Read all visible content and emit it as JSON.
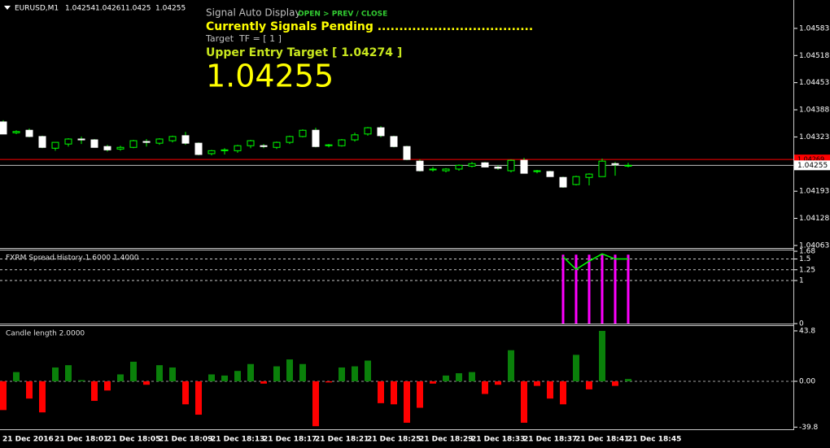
{
  "chart_data": [
    {
      "type": "candlestick",
      "title": "EURUSD,M1",
      "header_ohlc": [
        1.04254,
        1.04261,
        1.0425,
        1.04255
      ],
      "signal_label": "Signal Auto Display",
      "signal_mode": "OPEN > PREV / CLOSE",
      "status": "Currently Signals Pending ....................................",
      "target_tf": "Target  TF = [ 1 ]",
      "entry_target": "Upper Entry Target [ 1.04274 ]",
      "big_price": 1.04255,
      "categories": [
        "21 Dec 2016",
        null,
        null,
        null,
        "21 Dec 18:01",
        null,
        null,
        null,
        "21 Dec 18:05",
        null,
        null,
        null,
        "21 Dec 18:09",
        null,
        null,
        null,
        "21 Dec 18:13",
        null,
        null,
        null,
        "21 Dec 18:17",
        null,
        null,
        null,
        "21 Dec 18:21",
        null,
        null,
        null,
        "21 Dec 18:25",
        null,
        null,
        null,
        "21 Dec 18:29",
        null,
        null,
        null,
        "21 Dec 18:33",
        null,
        null,
        null,
        "21 Dec 18:37",
        null,
        null,
        null,
        "21 Dec 18:41",
        null,
        null,
        null,
        "21 Dec 18:45"
      ],
      "open": [
        1.04359,
        1.04333,
        1.04339,
        1.04324,
        1.04296,
        1.04306,
        1.04318,
        1.04316,
        1.043,
        1.04294,
        1.04298,
        1.04312,
        1.04308,
        1.04314,
        1.04326,
        1.04308,
        1.04283,
        1.0429,
        1.0429,
        1.04302,
        1.04302,
        1.04298,
        1.0431,
        1.04324,
        1.04339,
        1.04302,
        1.04302,
        1.04316,
        1.0433,
        1.04345,
        1.04324,
        1.043,
        1.04265,
        1.04244,
        1.04242,
        1.04246,
        1.04253,
        1.04261,
        1.04251,
        1.04242,
        1.04267,
        1.0424,
        1.0424,
        1.04226,
        1.04209,
        1.04226,
        1.04228,
        1.04259,
        1.04254
      ],
      "high": [
        1.04363,
        1.04339,
        1.04343,
        1.04326,
        1.0431,
        1.0432,
        1.04324,
        1.04318,
        1.04304,
        1.04302,
        1.04316,
        1.04318,
        1.0432,
        1.04326,
        1.04335,
        1.0431,
        1.04292,
        1.04296,
        1.04304,
        1.04316,
        1.04306,
        1.04312,
        1.04326,
        1.04341,
        1.04345,
        1.04306,
        1.04318,
        1.04333,
        1.04347,
        1.04349,
        1.04326,
        1.04302,
        1.04269,
        1.04251,
        1.04248,
        1.04257,
        1.04263,
        1.04263,
        1.04255,
        1.04269,
        1.04273,
        1.04244,
        1.04242,
        1.04228,
        1.0423,
        1.04236,
        1.04271,
        1.04263,
        1.04261
      ],
      "low": [
        1.0433,
        1.0433,
        1.04322,
        1.04296,
        1.0429,
        1.043,
        1.04306,
        1.04298,
        1.04288,
        1.0429,
        1.04296,
        1.043,
        1.04304,
        1.0431,
        1.04304,
        1.04279,
        1.04279,
        1.04281,
        1.04285,
        1.04296,
        1.04296,
        1.04294,
        1.04306,
        1.04322,
        1.04298,
        1.04298,
        1.043,
        1.04312,
        1.04326,
        1.04322,
        1.04298,
        1.04267,
        1.0424,
        1.0424,
        1.04238,
        1.04242,
        1.0425,
        1.0425,
        1.04244,
        1.04238,
        1.04236,
        1.04236,
        1.04228,
        1.04201,
        1.04207,
        1.04207,
        1.04228,
        1.0423,
        1.0425
      ],
      "close": [
        1.0433,
        1.04336,
        1.04324,
        1.04298,
        1.0431,
        1.04318,
        1.04316,
        1.04298,
        1.04292,
        1.04298,
        1.04314,
        1.0431,
        1.04318,
        1.04324,
        1.04308,
        1.04281,
        1.0429,
        1.04292,
        1.04302,
        1.04314,
        1.043,
        1.0431,
        1.04324,
        1.04339,
        1.043,
        1.04304,
        1.04316,
        1.04328,
        1.04345,
        1.04326,
        1.043,
        1.04269,
        1.04242,
        1.04246,
        1.04246,
        1.04255,
        1.04259,
        1.04251,
        1.04248,
        1.04267,
        1.04236,
        1.04242,
        1.04228,
        1.04203,
        1.04228,
        1.04234,
        1.04265,
        1.04257,
        1.04255
      ],
      "up_color": "#000000",
      "down_color": "#ffffff",
      "outline_color": "#00ff00",
      "current_price": 1.04255,
      "ask_price": 1.04269,
      "ylim": [
        1.04057,
        1.04651
      ],
      "yticks": [
        1.04583,
        1.04518,
        1.04453,
        1.04388,
        1.04323,
        1.04193,
        1.04128,
        1.04063
      ]
    },
    {
      "type": "bar",
      "title": "FXRM Spread History 1.6000 1.4000",
      "series": [
        {
          "color": "#ff00ff",
          "values": [
            null,
            null,
            null,
            null,
            null,
            null,
            null,
            null,
            null,
            null,
            null,
            null,
            null,
            null,
            null,
            null,
            null,
            null,
            null,
            null,
            null,
            null,
            null,
            null,
            null,
            null,
            null,
            null,
            null,
            null,
            null,
            null,
            null,
            null,
            null,
            null,
            null,
            null,
            null,
            null,
            null,
            null,
            null,
            1.6,
            1.6,
            1.6,
            1.6,
            1.6,
            1.6
          ]
        },
        {
          "type": "line",
          "color": "#00ff00",
          "values": [
            null,
            null,
            null,
            null,
            null,
            null,
            null,
            null,
            null,
            null,
            null,
            null,
            null,
            null,
            null,
            null,
            null,
            null,
            null,
            null,
            null,
            null,
            null,
            null,
            null,
            null,
            null,
            null,
            null,
            null,
            null,
            null,
            null,
            null,
            null,
            null,
            null,
            null,
            null,
            null,
            null,
            null,
            null,
            1.55,
            1.26,
            1.45,
            1.62,
            1.5,
            1.5
          ]
        }
      ],
      "ylim": [
        0,
        1.68
      ],
      "yticks": [
        1.68,
        1.5,
        1.25,
        1,
        0
      ],
      "grid": true
    },
    {
      "type": "bar",
      "title": "Candle length 2.0000",
      "values": [
        -25,
        8,
        -15,
        -27,
        12,
        14,
        1,
        -17,
        -8,
        6,
        17,
        -3,
        14,
        12,
        -20,
        -29,
        6,
        5,
        9,
        15,
        -2,
        13,
        19,
        15,
        -39,
        -1,
        12,
        13,
        18,
        -19,
        -20,
        -36,
        -23,
        -2,
        5,
        7,
        8,
        -11,
        -3,
        27,
        -36,
        -4,
        -15,
        -20,
        23,
        -7,
        43.8,
        -4,
        2
      ],
      "positive_color": "#0a800a",
      "negative_color": "#ff0000",
      "ylim": [
        -41.7,
        47.3
      ],
      "yticks": [
        43.8,
        {
          "value": 0,
          "label": "0.00"
        },
        -39.8
      ],
      "grid": false
    }
  ]
}
